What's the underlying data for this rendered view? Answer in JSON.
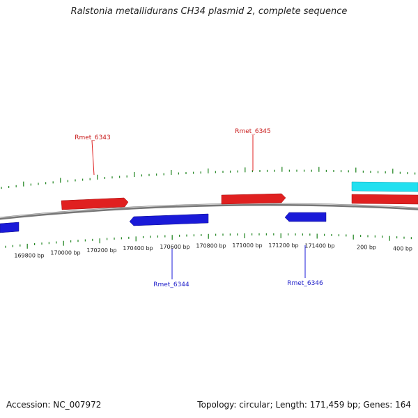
{
  "title": "Ralstonia metallidurans CH34 plasmid 2, complete sequence",
  "footer": {
    "accession": "Accession: NC_007972",
    "stats": "Topology: circular; Length: 171,459 bp; Genes: 164"
  },
  "scale": {
    "tick_labels": [
      "169800 bp",
      "170000 bp",
      "170200 bp",
      "170400 bp",
      "170600 bp",
      "170800 bp",
      "171000 bp",
      "171200 bp",
      "171400 bp",
      "200 bp",
      "400 bp"
    ]
  },
  "genes": [
    {
      "name": "Rmet_6343",
      "strand": "forward",
      "color": "#e02020",
      "labeled": true
    },
    {
      "name": "Rmet_6345",
      "strand": "forward",
      "color": "#e02020",
      "labeled": true
    },
    {
      "name": "Rmet_6344",
      "strand": "reverse",
      "color": "#1a1ad8",
      "labeled": true
    },
    {
      "name": "Rmet_6346",
      "strand": "reverse",
      "color": "#1a1ad8",
      "labeled": true
    },
    {
      "name": "",
      "strand": "forward",
      "color": "#e02020",
      "labeled": false
    },
    {
      "name": "",
      "strand": "forward",
      "color": "#22e0f0",
      "labeled": false
    },
    {
      "name": "",
      "strand": "reverse",
      "color": "#1a1ad8",
      "labeled": false
    }
  ],
  "colors": {
    "forward_gene": "#e02020",
    "reverse_gene": "#1a1ad8",
    "other_feature": "#22e0f0",
    "ticks": "#2a8a2a",
    "backbone": "#888888"
  }
}
